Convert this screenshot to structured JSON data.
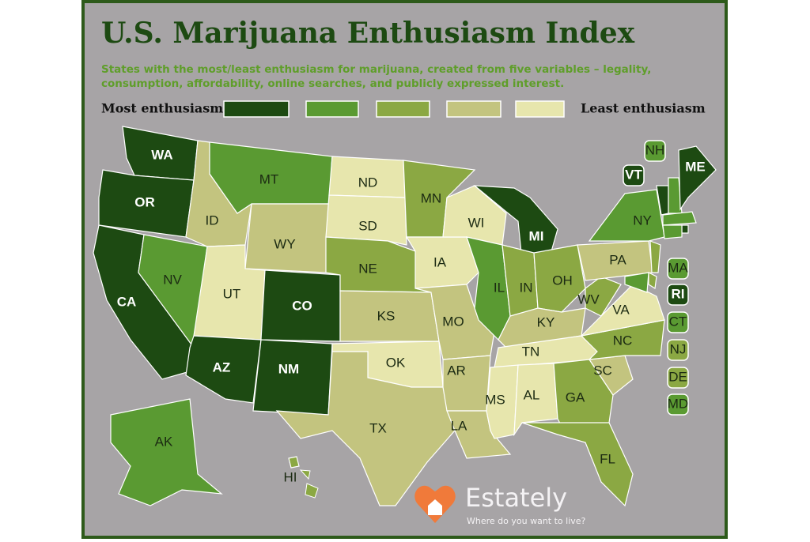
{
  "map": {
    "title": "U.S. Marijuana Enthusiasm Index",
    "subtitle": [
      "States with the most/least enthusiasm for marijuana, created from five variables – legality,",
      "consumption, affordability, online searches, and publicly expressed interest."
    ],
    "legend": {
      "most": "Most enthusiasm",
      "least": "Least enthusiasm",
      "colors": [
        "#1d4a12",
        "#5a9a32",
        "#8ba843",
        "#c3c47f",
        "#e7e6ad"
      ]
    },
    "states": [
      {
        "label": "WA",
        "color": "#1d4a12"
      },
      {
        "label": "OR",
        "color": "#1d4a12"
      },
      {
        "label": "CA",
        "color": "#1d4a12"
      },
      {
        "label": "NV",
        "color": "#5a9a32"
      },
      {
        "label": "ID",
        "color": "#c3c47f"
      },
      {
        "label": "MT",
        "color": "#5a9a32"
      },
      {
        "label": "WY",
        "color": "#c3c47f"
      },
      {
        "label": "UT",
        "color": "#e7e6ad"
      },
      {
        "label": "CO",
        "color": "#1d4a12"
      },
      {
        "label": "AZ",
        "color": "#1d4a12"
      },
      {
        "label": "NM",
        "color": "#1d4a12"
      },
      {
        "label": "ND",
        "color": "#e7e6ad"
      },
      {
        "label": "SD",
        "color": "#e7e6ad"
      },
      {
        "label": "NE",
        "color": "#8ba843"
      },
      {
        "label": "KS",
        "color": "#c3c47f"
      },
      {
        "label": "OK",
        "color": "#e7e6ad"
      },
      {
        "label": "TX",
        "color": "#c3c47f"
      },
      {
        "label": "MN",
        "color": "#8ba843"
      },
      {
        "label": "IA",
        "color": "#e7e6ad"
      },
      {
        "label": "MO",
        "color": "#c3c47f"
      },
      {
        "label": "AR",
        "color": "#c3c47f"
      },
      {
        "label": "LA",
        "color": "#c3c47f"
      },
      {
        "label": "WI",
        "color": "#e7e6ad"
      },
      {
        "label": "IL",
        "color": "#5a9a32"
      },
      {
        "label": "MI",
        "color": "#1d4a12"
      },
      {
        "label": "IN",
        "color": "#8ba843"
      },
      {
        "label": "OH",
        "color": "#8ba843"
      },
      {
        "label": "KY",
        "color": "#c3c47f"
      },
      {
        "label": "TN",
        "color": "#e7e6ad"
      },
      {
        "label": "MS",
        "color": "#e7e6ad"
      },
      {
        "label": "AL",
        "color": "#e7e6ad"
      },
      {
        "label": "GA",
        "color": "#8ba843"
      },
      {
        "label": "FL",
        "color": "#8ba843"
      },
      {
        "label": "SC",
        "color": "#c3c47f"
      },
      {
        "label": "NC",
        "color": "#8ba843"
      },
      {
        "label": "VA",
        "color": "#e7e6ad"
      },
      {
        "label": "WV",
        "color": "#8ba843"
      },
      {
        "label": "PA",
        "color": "#c3c47f"
      },
      {
        "label": "NY",
        "color": "#5a9a32"
      },
      {
        "label": "VT",
        "color": "#1d4a12"
      },
      {
        "label": "NH",
        "color": "#5a9a32"
      },
      {
        "label": "ME",
        "color": "#1d4a12"
      },
      {
        "label": "MA",
        "color": "#5a9a32"
      },
      {
        "label": "RI",
        "color": "#1d4a12"
      },
      {
        "label": "CT",
        "color": "#5a9a32"
      },
      {
        "label": "NJ",
        "color": "#8ba843"
      },
      {
        "label": "DE",
        "color": "#8ba843"
      },
      {
        "label": "MD",
        "color": "#5a9a32"
      },
      {
        "label": "AK",
        "color": "#5a9a32"
      },
      {
        "label": "HI",
        "color": "#8ba843"
      }
    ],
    "logo": {
      "name": "Estately",
      "tagline": "Where do you want to live?"
    }
  }
}
